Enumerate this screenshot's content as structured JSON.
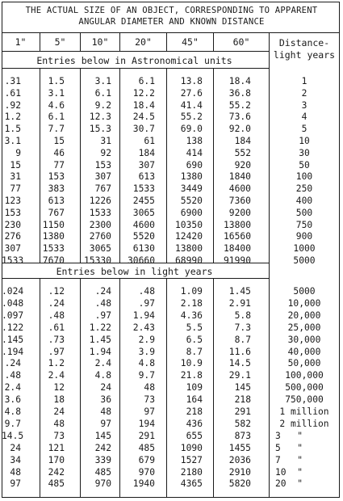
{
  "title_lines": [
    "THE ACTUAL SIZE OF AN OBJECT, CORRESPONDING TO APPARENT",
    "ANGULAR DIAMETER AND KNOWN DISTANCE"
  ],
  "columns": [
    "1\"",
    "5\"",
    "10\"",
    "20\"",
    "45\"",
    "60\""
  ],
  "distance_header": [
    "Distance-",
    "light years"
  ],
  "section_au_label": "Entries below in Astronomical units",
  "section_ly_label": "Entries below in light years",
  "au_rows": [
    [
      ".31",
      "1.5",
      "3.1",
      "6.1",
      "13.8",
      "18.4",
      "1"
    ],
    [
      ".61",
      "3.1",
      "6.1",
      "12.2",
      "27.6",
      "36.8",
      "2"
    ],
    [
      ".92",
      "4.6",
      "9.2",
      "18.4",
      "41.4",
      "55.2",
      "3"
    ],
    [
      "1.2",
      "6.1",
      "12.3",
      "24.5",
      "55.2",
      "73.6",
      "4"
    ],
    [
      "1.5",
      "7.7",
      "15.3",
      "30.7",
      "69.0",
      "92.0",
      "5"
    ],
    [
      "3.1",
      "15",
      "31",
      "61",
      "138",
      "184",
      "10"
    ],
    [
      "9",
      "46",
      "92",
      "184",
      "414",
      "552",
      "30"
    ],
    [
      "15",
      "77",
      "153",
      "307",
      "690",
      "920",
      "50"
    ],
    [
      "31",
      "153",
      "307",
      "613",
      "1380",
      "1840",
      "100"
    ],
    [
      "77",
      "383",
      "767",
      "1533",
      "3449",
      "4600",
      "250"
    ],
    [
      "123",
      "613",
      "1226",
      "2455",
      "5520",
      "7360",
      "400"
    ],
    [
      "153",
      "767",
      "1533",
      "3065",
      "6900",
      "9200",
      "500"
    ],
    [
      "230",
      "1150",
      "2300",
      "4600",
      "10350",
      "13800",
      "750"
    ],
    [
      "276",
      "1380",
      "2760",
      "5520",
      "12420",
      "16560",
      "900"
    ],
    [
      "307",
      "1533",
      "3065",
      "6130",
      "13800",
      "18400",
      "1000"
    ],
    [
      "1533",
      "7670",
      "15330",
      "30660",
      "68990",
      "91990",
      "5000"
    ]
  ],
  "ly_rows": [
    [
      ".024",
      ".12",
      ".24",
      ".48",
      "1.09",
      "1.45",
      "5000"
    ],
    [
      ".048",
      ".24",
      ".48",
      ".97",
      "2.18",
      "2.91",
      "10,000"
    ],
    [
      ".097",
      ".48",
      ".97",
      "1.94",
      "4.36",
      "5.8",
      "20,000"
    ],
    [
      ".122",
      ".61",
      "1.22",
      "2.43",
      "5.5",
      "7.3",
      "25,000"
    ],
    [
      ".145",
      ".73",
      "1.45",
      "2.9",
      "6.5",
      "8.7",
      "30,000"
    ],
    [
      ".194",
      ".97",
      "1.94",
      "3.9",
      "8.7",
      "11.6",
      "40,000"
    ],
    [
      ".24",
      "1.2",
      "2.4",
      "4.8",
      "10.9",
      "14.5",
      "50,000"
    ],
    [
      ".48",
      "2.4",
      "4.8",
      "9.7",
      "21.8",
      "29.1",
      "100,000"
    ],
    [
      "2.4",
      "12",
      "24",
      "48",
      "109",
      "145",
      "500,000"
    ],
    [
      "3.6",
      "18",
      "36",
      "73",
      "164",
      "218",
      "750,000"
    ],
    [
      "4.8",
      "24",
      "48",
      "97",
      "218",
      "291",
      "1 million"
    ],
    [
      "9.7",
      "48",
      "97",
      "194",
      "436",
      "582",
      "2 million"
    ],
    [
      "14.5",
      "73",
      "145",
      "291",
      "655",
      "873",
      "3   \""
    ],
    [
      "24",
      "121",
      "242",
      "485",
      "1090",
      "1455",
      "5   \""
    ],
    [
      "34",
      "170",
      "339",
      "679",
      "1527",
      "2036",
      "7   \""
    ],
    [
      "48",
      "242",
      "485",
      "970",
      "2180",
      "2910",
      "10  \""
    ],
    [
      "97",
      "485",
      "970",
      "1940",
      "4365",
      "5820",
      "20  \""
    ]
  ]
}
